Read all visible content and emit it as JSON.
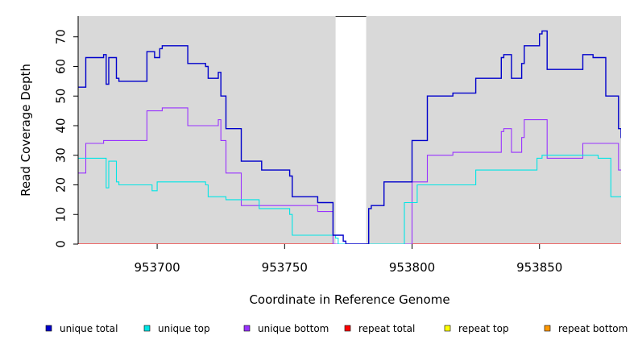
{
  "chart_data": {
    "type": "line",
    "xlabel": "Coordinate in Reference Genome",
    "ylabel": "Read Coverage Depth",
    "xlim": [
      953669,
      953882
    ],
    "ylim": [
      0,
      77
    ],
    "xticks": [
      953700,
      953750,
      953800,
      953850
    ],
    "yticks": [
      0,
      10,
      20,
      30,
      40,
      50,
      60,
      70
    ],
    "gap_region": [
      953770,
      953782
    ],
    "background_color": "#d9d9d9",
    "legend_position": "bottom",
    "series": [
      {
        "name": "unique total",
        "color": "#0000cc",
        "points": [
          [
            953669,
            53
          ],
          [
            953672,
            53
          ],
          [
            953672,
            63
          ],
          [
            953679,
            63
          ],
          [
            953679,
            64
          ],
          [
            953680,
            64
          ],
          [
            953680,
            54
          ],
          [
            953681,
            54
          ],
          [
            953681,
            63
          ],
          [
            953684,
            63
          ],
          [
            953684,
            56
          ],
          [
            953685,
            56
          ],
          [
            953685,
            55
          ],
          [
            953696,
            55
          ],
          [
            953696,
            65
          ],
          [
            953699,
            65
          ],
          [
            953699,
            63
          ],
          [
            953701,
            63
          ],
          [
            953701,
            66
          ],
          [
            953702,
            66
          ],
          [
            953702,
            67
          ],
          [
            953712,
            67
          ],
          [
            953712,
            61
          ],
          [
            953719,
            61
          ],
          [
            953719,
            60
          ],
          [
            953720,
            60
          ],
          [
            953720,
            56
          ],
          [
            953724,
            56
          ],
          [
            953724,
            58
          ],
          [
            953725,
            58
          ],
          [
            953725,
            50
          ],
          [
            953727,
            50
          ],
          [
            953727,
            39
          ],
          [
            953733,
            39
          ],
          [
            953733,
            28
          ],
          [
            953741,
            28
          ],
          [
            953741,
            25
          ],
          [
            953752,
            25
          ],
          [
            953752,
            23
          ],
          [
            953753,
            23
          ],
          [
            953753,
            16
          ],
          [
            953763,
            16
          ],
          [
            953763,
            14
          ],
          [
            953769,
            14
          ],
          [
            953769,
            3
          ],
          [
            953773,
            3
          ],
          [
            953773,
            1
          ],
          [
            953774,
            1
          ],
          [
            953774,
            0
          ],
          [
            953783,
            0
          ],
          [
            953783,
            12
          ],
          [
            953784,
            12
          ],
          [
            953784,
            13
          ],
          [
            953789,
            13
          ],
          [
            953789,
            21
          ],
          [
            953800,
            21
          ],
          [
            953800,
            35
          ],
          [
            953806,
            35
          ],
          [
            953806,
            50
          ],
          [
            953816,
            50
          ],
          [
            953816,
            51
          ],
          [
            953825,
            51
          ],
          [
            953825,
            56
          ],
          [
            953835,
            56
          ],
          [
            953835,
            63
          ],
          [
            953836,
            63
          ],
          [
            953836,
            64
          ],
          [
            953839,
            64
          ],
          [
            953839,
            56
          ],
          [
            953843,
            56
          ],
          [
            953843,
            61
          ],
          [
            953844,
            61
          ],
          [
            953844,
            67
          ],
          [
            953850,
            67
          ],
          [
            953850,
            71
          ],
          [
            953851,
            71
          ],
          [
            953851,
            72
          ],
          [
            953853,
            72
          ],
          [
            953853,
            59
          ],
          [
            953867,
            59
          ],
          [
            953867,
            64
          ],
          [
            953871,
            64
          ],
          [
            953871,
            63
          ],
          [
            953876,
            63
          ],
          [
            953876,
            50
          ],
          [
            953881,
            50
          ],
          [
            953881,
            39
          ],
          [
            953882,
            39
          ],
          [
            953882,
            36
          ],
          [
            953888,
            36
          ]
        ]
      },
      {
        "name": "unique top",
        "color": "#00e5e5",
        "points": [
          [
            953669,
            29
          ],
          [
            953680,
            29
          ],
          [
            953680,
            19
          ],
          [
            953681,
            19
          ],
          [
            953681,
            28
          ],
          [
            953684,
            28
          ],
          [
            953684,
            21
          ],
          [
            953685,
            21
          ],
          [
            953685,
            20
          ],
          [
            953698,
            20
          ],
          [
            953698,
            18
          ],
          [
            953700,
            18
          ],
          [
            953700,
            21
          ],
          [
            953719,
            21
          ],
          [
            953719,
            20
          ],
          [
            953720,
            20
          ],
          [
            953720,
            16
          ],
          [
            953727,
            16
          ],
          [
            953727,
            15
          ],
          [
            953740,
            15
          ],
          [
            953740,
            12
          ],
          [
            953752,
            12
          ],
          [
            953752,
            10
          ],
          [
            953753,
            10
          ],
          [
            953753,
            3
          ],
          [
            953770,
            3
          ],
          [
            953770,
            2
          ],
          [
            953771,
            2
          ],
          [
            953771,
            0
          ],
          [
            953797,
            0
          ],
          [
            953797,
            14
          ],
          [
            953802,
            14
          ],
          [
            953802,
            20
          ],
          [
            953825,
            20
          ],
          [
            953825,
            25
          ],
          [
            953849,
            25
          ],
          [
            953849,
            29
          ],
          [
            953851,
            29
          ],
          [
            953851,
            30
          ],
          [
            953873,
            30
          ],
          [
            953873,
            29
          ],
          [
            953878,
            29
          ],
          [
            953878,
            16
          ],
          [
            953883,
            16
          ],
          [
            953883,
            14
          ],
          [
            953884,
            14
          ],
          [
            953884,
            11
          ],
          [
            953886,
            11
          ],
          [
            953886,
            10
          ],
          [
            953888,
            10
          ]
        ]
      },
      {
        "name": "unique bottom",
        "color": "#9933ff",
        "points": [
          [
            953669,
            24
          ],
          [
            953672,
            24
          ],
          [
            953672,
            34
          ],
          [
            953679,
            34
          ],
          [
            953679,
            35
          ],
          [
            953696,
            35
          ],
          [
            953696,
            45
          ],
          [
            953702,
            45
          ],
          [
            953702,
            46
          ],
          [
            953712,
            46
          ],
          [
            953712,
            40
          ],
          [
            953724,
            40
          ],
          [
            953724,
            42
          ],
          [
            953725,
            42
          ],
          [
            953725,
            35
          ],
          [
            953727,
            35
          ],
          [
            953727,
            24
          ],
          [
            953733,
            24
          ],
          [
            953733,
            13
          ],
          [
            953763,
            13
          ],
          [
            953763,
            11
          ],
          [
            953769,
            11
          ],
          [
            953769,
            0
          ],
          [
            953800,
            0
          ],
          [
            953800,
            21
          ],
          [
            953806,
            21
          ],
          [
            953806,
            30
          ],
          [
            953816,
            30
          ],
          [
            953816,
            31
          ],
          [
            953835,
            31
          ],
          [
            953835,
            38
          ],
          [
            953836,
            38
          ],
          [
            953836,
            39
          ],
          [
            953839,
            39
          ],
          [
            953839,
            31
          ],
          [
            953843,
            31
          ],
          [
            953843,
            36
          ],
          [
            953844,
            36
          ],
          [
            953844,
            42
          ],
          [
            953853,
            42
          ],
          [
            953853,
            29
          ],
          [
            953867,
            29
          ],
          [
            953867,
            34
          ],
          [
            953881,
            34
          ],
          [
            953881,
            25
          ],
          [
            953884,
            25
          ],
          [
            953884,
            26
          ],
          [
            953888,
            26
          ]
        ]
      },
      {
        "name": "repeat total",
        "color": "#ff0000",
        "points": [
          [
            953669,
            0
          ],
          [
            953888,
            0
          ]
        ]
      },
      {
        "name": "repeat top",
        "color": "#ffff00",
        "points": [
          [
            953669,
            0
          ],
          [
            953888,
            0
          ]
        ]
      },
      {
        "name": "repeat bottom",
        "color": "#ff9900",
        "points": [
          [
            953669,
            0
          ],
          [
            953888,
            0
          ]
        ]
      }
    ]
  }
}
